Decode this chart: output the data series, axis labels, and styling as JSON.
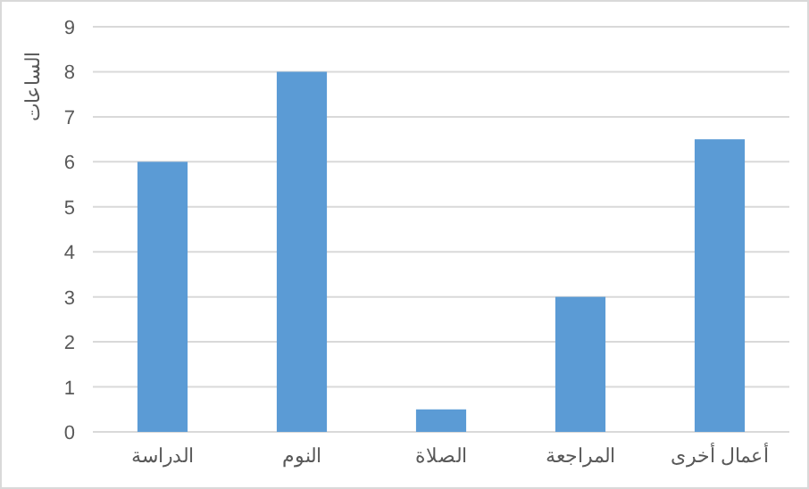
{
  "chart_data": {
    "type": "bar",
    "ylabel": "الساعات",
    "categories": [
      "الدراسة",
      "النوم",
      "الصلاة",
      "المراجعة",
      "أعمال أخرى"
    ],
    "values": [
      6,
      8,
      0.5,
      3,
      6.5
    ],
    "color": "#5b9bd5",
    "ylim": [
      0,
      9
    ],
    "yticks": [
      0,
      1,
      2,
      3,
      4,
      5,
      6,
      7,
      8,
      9
    ],
    "grid": "y"
  }
}
